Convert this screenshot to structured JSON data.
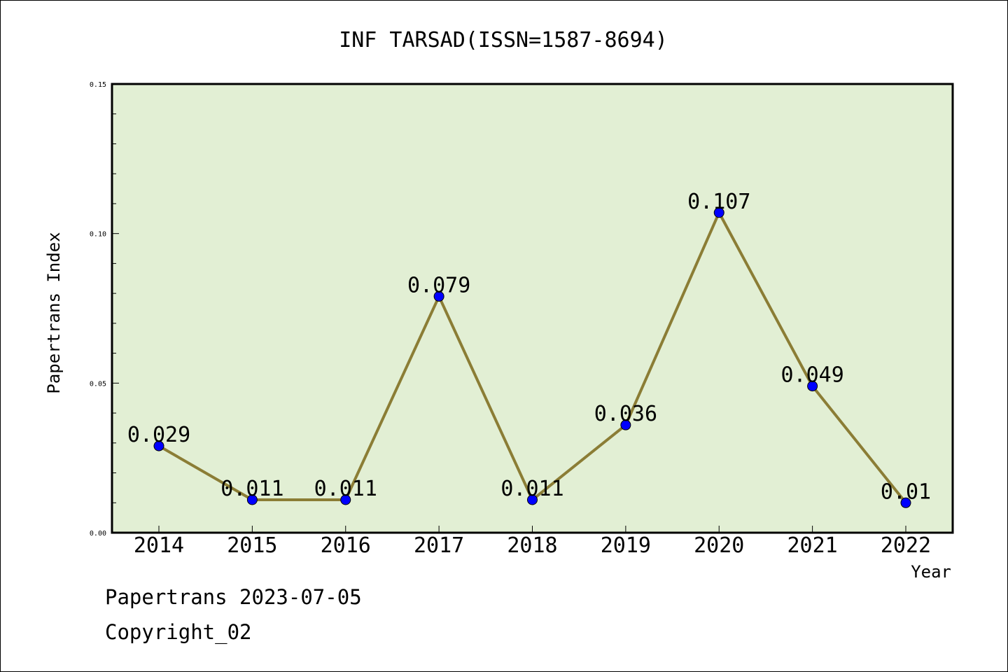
{
  "chart_data": {
    "type": "line",
    "title": "INF TARSAD(ISSN=1587-8694)",
    "xlabel": "Year",
    "ylabel": "Papertrans Index",
    "categories": [
      "2014",
      "2015",
      "2016",
      "2017",
      "2018",
      "2019",
      "2020",
      "2021",
      "2022"
    ],
    "series": [
      {
        "values": [
          0.029,
          0.011,
          0.011,
          0.079,
          0.011,
          0.036,
          0.107,
          0.049,
          0.01
        ],
        "data_labels": [
          "0.029",
          "0.011",
          "0.011",
          "0.079",
          "0.011",
          "0.036",
          "0.107",
          "0.049",
          "0.01"
        ]
      }
    ],
    "ylim": [
      0,
      0.15
    ],
    "yticks": [
      0.0,
      0.05,
      0.1,
      0.15
    ],
    "ytick_labels": [
      "0.00",
      "0.05",
      "0.10",
      "0.15"
    ],
    "grid": false,
    "colors": {
      "plot_background": "#e2efd4",
      "line": "#8b7d35",
      "marker": "#0000ff"
    }
  },
  "footer": {
    "line1": "Papertrans 2023-07-05",
    "line2": "Copyright_02"
  }
}
